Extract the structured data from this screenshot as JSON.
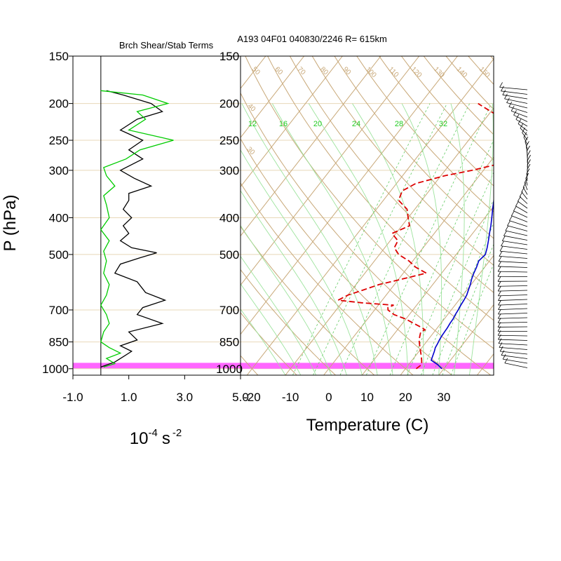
{
  "figure": {
    "title": "A193 04F01 040830/2246 R= 615km",
    "ylabel": "P (hPa)"
  },
  "chart_data": [
    {
      "type": "line",
      "title": "Brch Shear/Stab Terms",
      "xlabel_base": "10",
      "xlabel_exp": "-4",
      "xlabel_unit": "s",
      "xlabel_unit_exp": "-2",
      "xlim": [
        -1.0,
        5.0
      ],
      "x_ticks": [
        "-1.0",
        "1.0",
        "3.0",
        "5.0"
      ],
      "pressure_ticks": [
        "150",
        "200",
        "250",
        "300",
        "400",
        "500",
        "700",
        "850",
        "1000"
      ],
      "series": [
        {
          "color": "#000000",
          "p": [
            185,
            190,
            200,
            210,
            220,
            235,
            250,
            265,
            280,
            300,
            315,
            330,
            345,
            360,
            380,
            400,
            420,
            440,
            460,
            480,
            495,
            510,
            530,
            560,
            590,
            630,
            660,
            690,
            720,
            760,
            800,
            840,
            870,
            900,
            930,
            960,
            990
          ],
          "x": [
            0.2,
            0.8,
            1.8,
            2.2,
            1.3,
            0.7,
            1.5,
            1.0,
            1.5,
            0.7,
            1.2,
            1.8,
            1.0,
            1.0,
            0.8,
            1.1,
            0.8,
            1.0,
            0.7,
            1.1,
            2.0,
            1.4,
            0.7,
            0.5,
            1.3,
            1.6,
            2.3,
            1.5,
            1.3,
            2.2,
            1.0,
            1.3,
            0.7,
            1.1,
            0.8,
            0.5,
            0.0
          ]
        },
        {
          "color": "#00cc00",
          "p": [
            185,
            190,
            200,
            210,
            220,
            235,
            250,
            265,
            280,
            295,
            310,
            330,
            350,
            370,
            400,
            430,
            460,
            490,
            520,
            560,
            600,
            640,
            680,
            720,
            760,
            800,
            850,
            880,
            910,
            940,
            970,
            990
          ],
          "x": [
            0.0,
            1.5,
            2.4,
            1.3,
            1.6,
            1.0,
            2.6,
            1.4,
            0.9,
            0.1,
            0.2,
            0.5,
            0.1,
            0.2,
            0.3,
            0.0,
            0.3,
            0.1,
            0.2,
            0.1,
            0.3,
            0.2,
            0.0,
            0.2,
            0.3,
            0.1,
            0.0,
            0.3,
            0.7,
            0.2,
            0.5,
            0.1
          ]
        }
      ]
    },
    {
      "type": "line",
      "xlabel": "Temperature (C)",
      "xlim": [
        -23,
        43
      ],
      "x_ticks": [
        "-20",
        "-10",
        "0",
        "10",
        "20",
        "30"
      ],
      "pressure_ticks": [
        "150",
        "200",
        "250",
        "300",
        "400",
        "500",
        "700",
        "850",
        "1000"
      ],
      "dry_adiabat_labels": [
        "30",
        "40",
        "50",
        "60",
        "70",
        "80",
        "90",
        "100",
        "110",
        "120",
        "130",
        "140",
        "150"
      ],
      "mixing_ratio_labels": [
        "12",
        "16",
        "20",
        "24",
        "28",
        "32"
      ],
      "series": [
        {
          "name": "temperature",
          "color": "#0000cc",
          "p": [
            1000,
            975,
            950,
            925,
            900,
            880,
            860,
            840,
            820,
            800,
            780,
            760,
            740,
            720,
            700,
            680,
            660,
            640,
            620,
            600,
            580,
            560,
            540,
            520,
            500,
            480,
            460,
            440,
            420,
            400,
            380,
            360,
            340,
            320,
            300,
            280,
            260,
            240,
            225,
            210,
            200,
            190,
            180
          ],
          "t": [
            29.5,
            27.5,
            25.0,
            24.5,
            24.0,
            23.5,
            23.3,
            23.0,
            22.8,
            22.7,
            22.6,
            22.4,
            22.3,
            22.0,
            21.8,
            21.5,
            21.3,
            21.0,
            20.4,
            19.8,
            19.0,
            18.4,
            17.9,
            17.2,
            17.6,
            16.7,
            15.6,
            14.4,
            13.2,
            11.8,
            10.3,
            8.8,
            7.3,
            6.0,
            4.8,
            3.7,
            2.8,
            1.8,
            1.2,
            0.9,
            0.9,
            0.4,
            -0.3
          ]
        },
        {
          "name": "dewpoint",
          "color": "#dd0000",
          "p": [
            1000,
            975,
            950,
            925,
            900,
            880,
            860,
            840,
            820,
            800,
            790,
            780,
            760,
            740,
            720,
            700,
            690,
            680,
            670,
            660,
            640,
            620,
            600,
            580,
            560,
            540,
            520,
            500,
            480,
            460,
            440,
            420,
            400,
            380,
            360,
            340,
            325,
            310,
            300,
            290,
            280,
            270,
            260,
            250,
            240,
            230,
            220,
            210,
            200
          ],
          "t": [
            22.8,
            23.4,
            22.5,
            21.5,
            20.4,
            19.5,
            18.6,
            17.7,
            17.1,
            16.5,
            17.2,
            16.0,
            13.0,
            10.0,
            6.0,
            3.5,
            3.0,
            4.0,
            -5.0,
            -11.5,
            -10.0,
            -7.0,
            -4.0,
            1.0,
            6.0,
            2.0,
            -1.0,
            -5.0,
            -7.5,
            -8.0,
            -11.0,
            -8.0,
            -10.0,
            -12.0,
            -16.0,
            -17.0,
            -15.0,
            -9.0,
            -3.0,
            2.0,
            1.5,
            0.5,
            0.8,
            1.3,
            0.3,
            -2.0,
            -5.0,
            -10.0,
            -15.0
          ]
        }
      ],
      "highlight_band": {
        "p_bottom": 1000,
        "p_top": 965,
        "color": "#ff66ff"
      }
    }
  ]
}
